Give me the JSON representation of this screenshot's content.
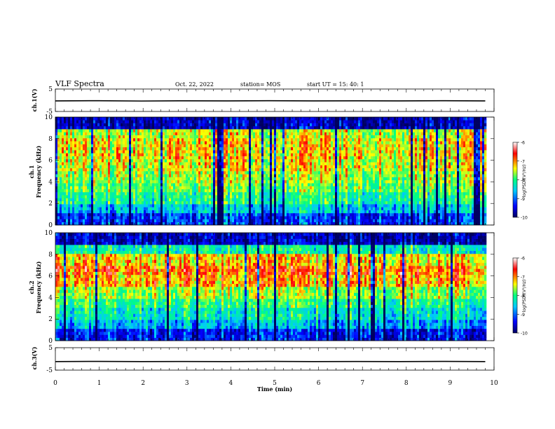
{
  "header": {
    "title": "VLF Spectra",
    "date": "Oct. 22, 2022",
    "station": "station= MOS",
    "start": "start  UT =   15: 40: 1"
  },
  "chart_data": [
    {
      "type": "line",
      "ylabel": "ch.1(V)",
      "ylim": [
        -5,
        5
      ],
      "yticks": [
        "5",
        "-5"
      ],
      "series": [
        {
          "values": [
            -0.3,
            -0.2,
            -0.35,
            -0.25,
            -0.3,
            -0.2,
            -0.3,
            -0.25,
            -0.3,
            -0.2,
            -0.3
          ]
        }
      ],
      "x": [
        0,
        0.98,
        1.96,
        2.94,
        3.92,
        4.9,
        5.88,
        6.86,
        7.84,
        8.82,
        9.8
      ]
    },
    {
      "type": "heatmap",
      "ylabel": "ch.1\nFrequency (kHz)",
      "ylim": [
        0,
        10
      ],
      "yticks": [
        "0",
        "2",
        "4",
        "6",
        "8",
        "10"
      ],
      "colorbar": {
        "label": "log(PSD)(V²/Hz)",
        "range": [
          -10,
          -6
        ],
        "ticks": [
          "-6",
          "-7",
          "-8",
          "-9",
          "-10"
        ]
      },
      "profile_kHz": [
        0.5,
        1.5,
        2.5,
        3.5,
        4.5,
        5.5,
        6.5,
        7.5,
        8.5,
        9.5
      ],
      "profile_logPSD": [
        -9.2,
        -8.6,
        -8.1,
        -7.8,
        -7.6,
        -7.4,
        -7.3,
        -7.3,
        -7.5,
        -9.6
      ]
    },
    {
      "type": "heatmap",
      "ylabel": "ch.2\nFrequency (kHz)",
      "ylim": [
        0,
        10
      ],
      "yticks": [
        "0",
        "2",
        "4",
        "6",
        "8",
        "10"
      ],
      "colorbar": {
        "label": "log(PSD)(V²/Hz)",
        "range": [
          -10,
          -6
        ],
        "ticks": [
          "-6",
          "-7",
          "-8",
          "-9",
          "-10"
        ]
      },
      "profile_kHz": [
        0.5,
        1.5,
        2.5,
        3.5,
        4.5,
        5.5,
        6.5,
        7.5,
        8.5,
        9.5
      ],
      "profile_logPSD": [
        -9.3,
        -8.7,
        -8.3,
        -8.0,
        -7.6,
        -7.1,
        -6.9,
        -7.2,
        -8.2,
        -9.6
      ]
    },
    {
      "type": "line",
      "ylabel": "ch.3(V)",
      "ylim": [
        -5,
        5
      ],
      "yticks": [
        "5",
        "-5"
      ],
      "series": [
        {
          "values": [
            -1.2,
            -1.1,
            -1.2,
            -1.15,
            -1.2,
            -1.1,
            -1.2,
            -1.15,
            -1.2,
            -1.1,
            -1.2
          ]
        }
      ],
      "x": [
        0,
        0.98,
        1.96,
        2.94,
        3.92,
        4.9,
        5.88,
        6.86,
        7.84,
        8.82,
        9.8
      ]
    }
  ],
  "xaxis": {
    "label": "Time (min)",
    "xlim": [
      0,
      10
    ],
    "ticks": [
      "0",
      "1",
      "2",
      "3",
      "4",
      "5",
      "6",
      "7",
      "8",
      "9",
      "10"
    ],
    "data_end": 9.8
  },
  "colors": {
    "colormap": [
      "#000060",
      "#0000ff",
      "#00c8ff",
      "#00ff80",
      "#ffff00",
      "#ff0000",
      "#ffffff"
    ]
  }
}
